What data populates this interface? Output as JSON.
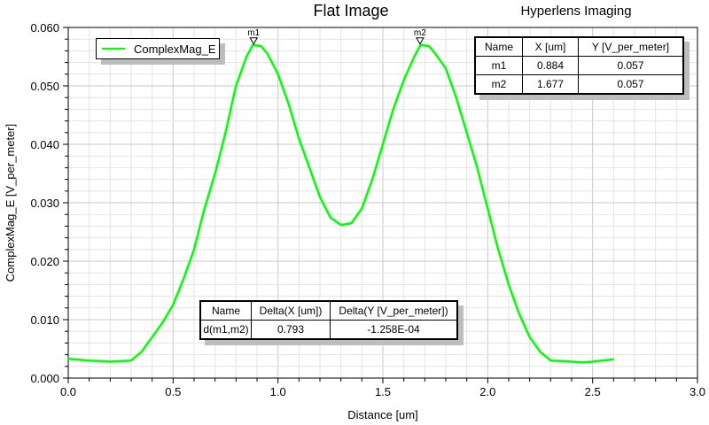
{
  "chart_data": {
    "type": "line",
    "title": "Flat Image",
    "subtitle": "Hyperlens Imaging",
    "xlabel": "Distance [um]",
    "ylabel": "ComplexMag_E [V_per_meter]",
    "xlim": [
      0,
      3.0
    ],
    "ylim": [
      0,
      0.06
    ],
    "xticks": [
      "0.0",
      "0.5",
      "1.0",
      "1.5",
      "2.0",
      "2.5",
      "3.0"
    ],
    "yticks": [
      "0.000",
      "0.010",
      "0.020",
      "0.030",
      "0.040",
      "0.050",
      "0.060"
    ],
    "grid": true,
    "legend_position": "top-left",
    "series": [
      {
        "name": "ComplexMag_E",
        "color": "#00ff00",
        "x": [
          0.0,
          0.1,
          0.2,
          0.3,
          0.35,
          0.4,
          0.45,
          0.5,
          0.55,
          0.6,
          0.65,
          0.7,
          0.75,
          0.8,
          0.82,
          0.85,
          0.88,
          0.92,
          0.95,
          1.0,
          1.05,
          1.1,
          1.15,
          1.2,
          1.25,
          1.3,
          1.35,
          1.4,
          1.45,
          1.5,
          1.55,
          1.6,
          1.65,
          1.68,
          1.72,
          1.75,
          1.8,
          1.85,
          1.9,
          1.95,
          2.0,
          2.05,
          2.1,
          2.15,
          2.2,
          2.25,
          2.3,
          2.35,
          2.4,
          2.45,
          2.5,
          2.6
        ],
        "y": [
          0.0033,
          0.003,
          0.0028,
          0.003,
          0.0045,
          0.007,
          0.0095,
          0.0125,
          0.017,
          0.022,
          0.029,
          0.035,
          0.042,
          0.05,
          0.052,
          0.055,
          0.057,
          0.0568,
          0.0555,
          0.052,
          0.047,
          0.041,
          0.036,
          0.031,
          0.0275,
          0.0262,
          0.0265,
          0.029,
          0.034,
          0.04,
          0.046,
          0.051,
          0.055,
          0.057,
          0.0568,
          0.0555,
          0.053,
          0.048,
          0.042,
          0.036,
          0.029,
          0.022,
          0.016,
          0.011,
          0.007,
          0.0045,
          0.003,
          0.0029,
          0.0028,
          0.0027,
          0.0028,
          0.0032
        ]
      }
    ],
    "markers": [
      {
        "name": "m1",
        "x": 0.884,
        "y": 0.057
      },
      {
        "name": "m2",
        "x": 1.677,
        "y": 0.057
      }
    ]
  },
  "marker_table": {
    "headers": [
      "Name",
      "X [um]",
      "Y [V_per_meter]"
    ],
    "rows": [
      [
        "m1",
        "0.884",
        "0.057"
      ],
      [
        "m2",
        "1.677",
        "0.057"
      ]
    ]
  },
  "delta_table": {
    "headers": [
      "Name",
      "Delta(X [um])",
      "Delta(Y [V_per_meter])"
    ],
    "rows": [
      [
        "d(m1,m2)",
        "0.793",
        "-1.258E-04"
      ]
    ]
  }
}
